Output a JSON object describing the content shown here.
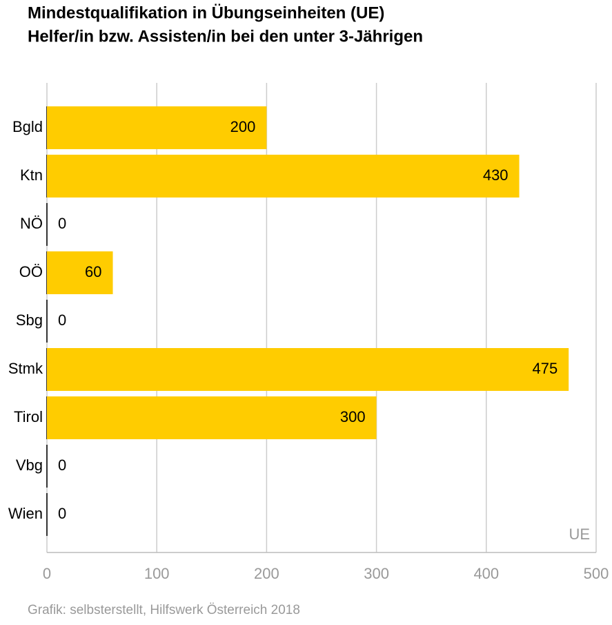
{
  "chart_data": {
    "type": "bar",
    "orientation": "horizontal",
    "title": [
      "Mindestqualifikation in Übungseinheiten (UE)",
      "Helfer/in bzw. Assisten/in bei den unter 3-Jährigen"
    ],
    "categories": [
      "Bgld",
      "Ktn",
      "NÖ",
      "OÖ",
      "Sbg",
      "Stmk",
      "Tirol",
      "Vbg",
      "Wien"
    ],
    "values": [
      200,
      430,
      0,
      60,
      0,
      475,
      300,
      0,
      0
    ],
    "color": "#ffcc00",
    "xlim": [
      0,
      500
    ],
    "xticks": [
      0,
      100,
      200,
      300,
      400,
      500
    ],
    "x_label": "UE",
    "grid": true,
    "source": "Grafik: selbsterstellt, Hilfswerk Österreich 2018"
  }
}
